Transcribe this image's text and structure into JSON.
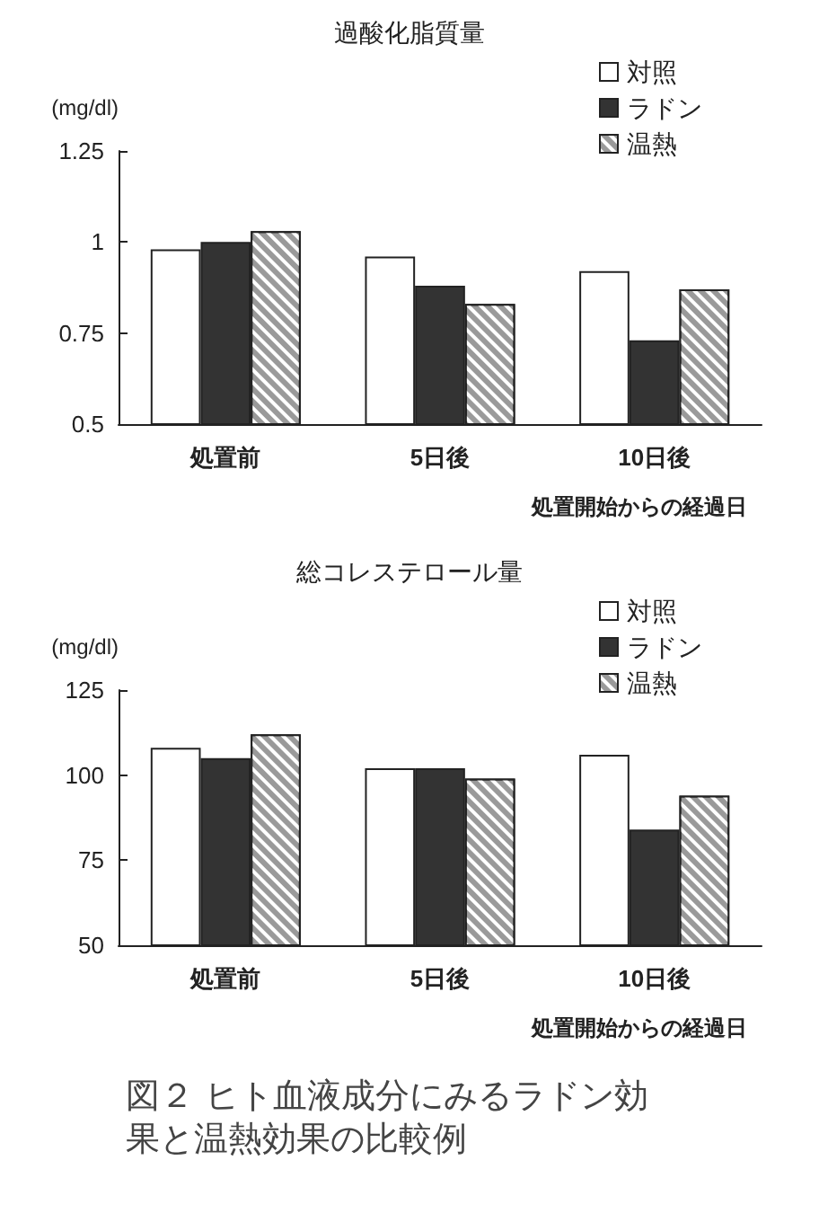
{
  "chart_data": [
    {
      "type": "bar",
      "title": "過酸化脂質量",
      "ylabel": "(mg/dl)",
      "xlabel": "処置開始からの経過日",
      "categories": [
        "処置前",
        "5日後",
        "10日後"
      ],
      "series": [
        {
          "name": "対照",
          "color": "#ffffff",
          "values": [
            0.98,
            0.96,
            0.92
          ]
        },
        {
          "name": "ラドン",
          "color": "#333333",
          "values": [
            1.0,
            0.88,
            0.73
          ]
        },
        {
          "name": "温熱",
          "color": "#9a9a9a",
          "values": [
            1.03,
            0.83,
            0.87
          ]
        }
      ],
      "ylim": [
        0.5,
        1.25
      ],
      "yticks": [
        0.5,
        0.75,
        1,
        1.25
      ],
      "grid": false,
      "legend": "top right"
    },
    {
      "type": "bar",
      "title": "総コレステロール量",
      "ylabel": "(mg/dl)",
      "xlabel": "処置開始からの経過日",
      "categories": [
        "処置前",
        "5日後",
        "10日後"
      ],
      "series": [
        {
          "name": "対照",
          "color": "#ffffff",
          "values": [
            108,
            102,
            106
          ]
        },
        {
          "name": "ラドン",
          "color": "#333333",
          "values": [
            105,
            102,
            84
          ]
        },
        {
          "name": "温熱",
          "color": "#9a9a9a",
          "values": [
            112,
            99,
            94
          ]
        }
      ],
      "ylim": [
        50,
        125
      ],
      "yticks": [
        50,
        75,
        100,
        125
      ],
      "grid": false,
      "legend": "top right",
      "annotations": [
        "図２ ヒト血液成分にみるラドン効果と温熱効果の比較例"
      ]
    }
  ]
}
